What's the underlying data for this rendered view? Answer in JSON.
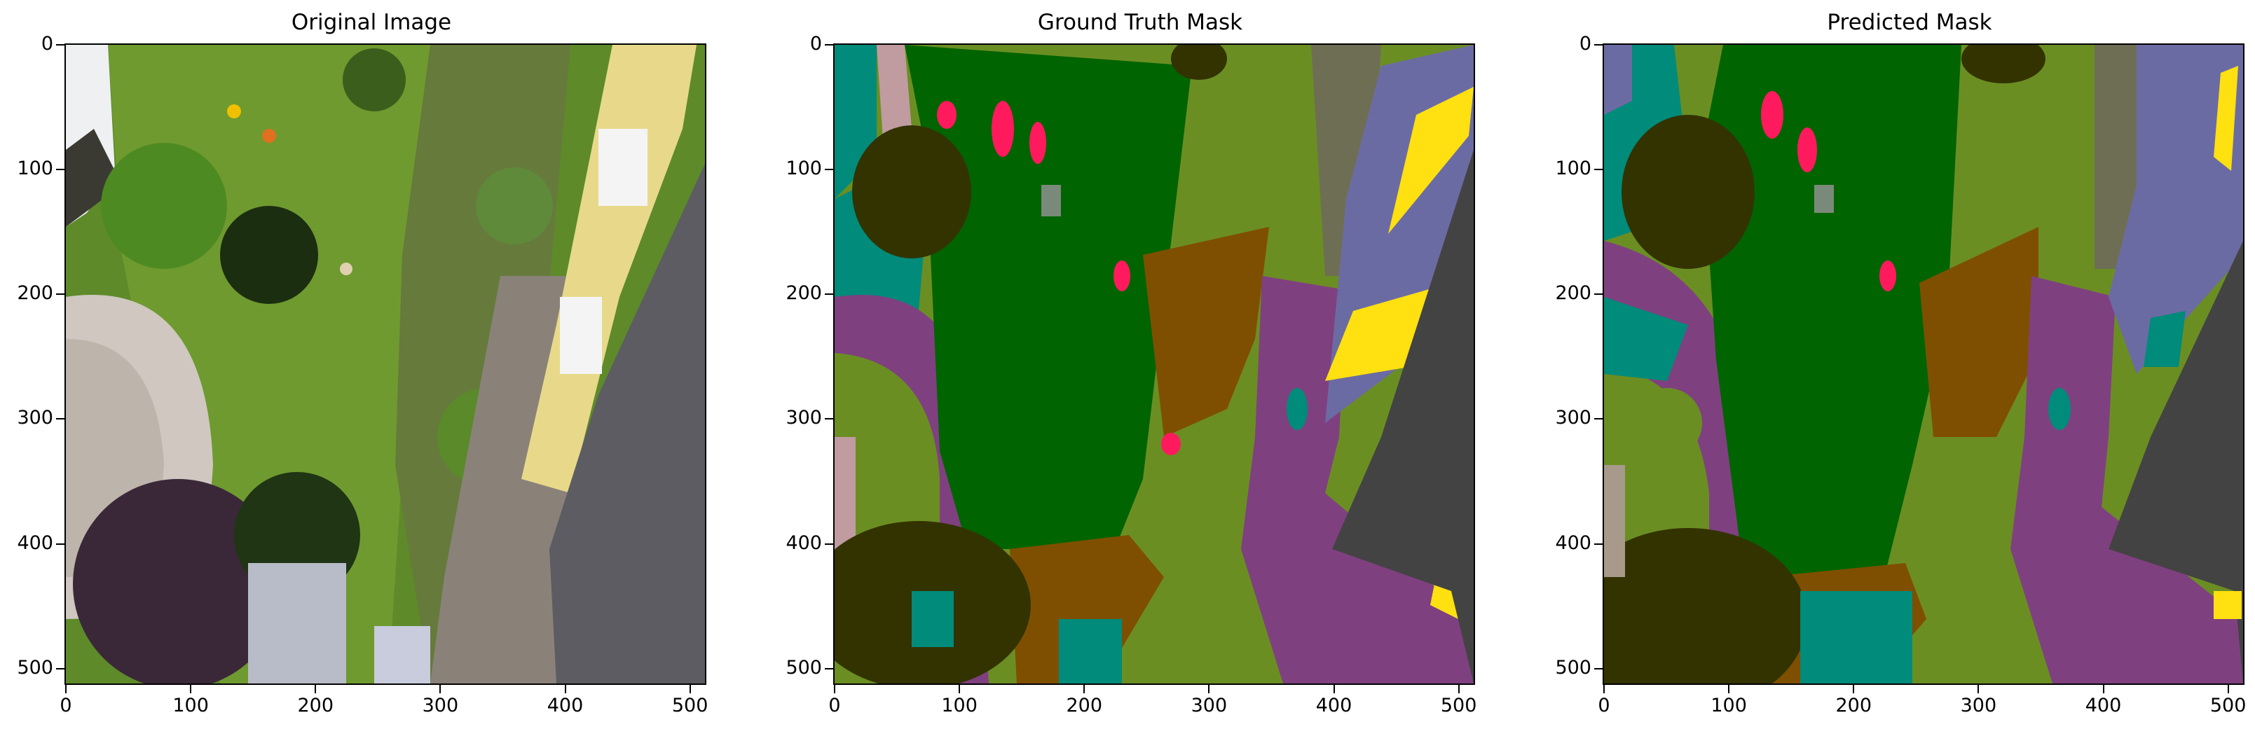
{
  "panels": [
    {
      "title": "Original Image"
    },
    {
      "title": "Ground Truth Mask"
    },
    {
      "title": "Predicted Mask"
    }
  ],
  "chart_data": [
    {
      "type": "image",
      "title": "Original Image",
      "xticks": [
        "0",
        "100",
        "200",
        "300",
        "400",
        "500"
      ],
      "yticks": [
        "0",
        "100",
        "200",
        "300",
        "400",
        "500"
      ],
      "xlim": [
        0,
        512
      ],
      "ylim": [
        512,
        0
      ]
    },
    {
      "type": "image",
      "title": "Ground Truth Mask",
      "xticks": [
        "0",
        "100",
        "200",
        "300",
        "400",
        "500"
      ],
      "yticks": [
        "0",
        "100",
        "200",
        "300",
        "400",
        "500"
      ],
      "xlim": [
        0,
        512
      ],
      "ylim": [
        512,
        0
      ]
    },
    {
      "type": "image",
      "title": "Predicted Mask",
      "xticks": [
        "0",
        "100",
        "200",
        "300",
        "400",
        "500"
      ],
      "yticks": [
        "0",
        "100",
        "200",
        "300",
        "400",
        "500"
      ],
      "xlim": [
        0,
        512
      ],
      "ylim": [
        512,
        0
      ]
    }
  ],
  "colors": {
    "grass": "#006400",
    "vegetation": "#6b8e23",
    "tree": "#333300",
    "paved": "#7f4080",
    "roof": "#434343",
    "wall": "#6b6ba3",
    "window": "#ffe010",
    "soil": "#7f4f00",
    "water": "#008b7a",
    "person": "#ff1a5e",
    "gravel": "#6e6e55",
    "pink": "#c09ba0"
  }
}
